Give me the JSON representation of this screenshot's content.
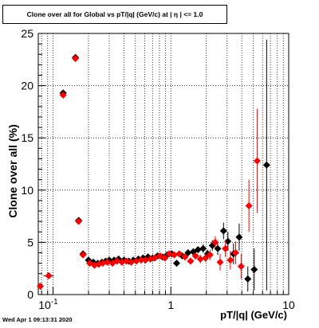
{
  "title": "Clone  over all for Global vs pT/|q| (GeV/c) at |  η | <= 1.0",
  "timestamp": "Wed Apr  1 09:13:31 2020",
  "colors": {
    "black_series": "#000000",
    "red_series": "#ff0000",
    "grid": "#000000"
  },
  "chart_data": {
    "type": "scatter",
    "title": "Clone  over all for Global vs pT/|q| (GeV/c) at |  η | <= 1.0",
    "xlabel": "pT/|q| (GeV/c)",
    "ylabel": "Clone  over all (%)",
    "xscale": "log",
    "xlim": [
      0.075,
      10
    ],
    "ylim": [
      0,
      25
    ],
    "x_tick_labels": [
      "10^-1",
      "1",
      "10"
    ],
    "y_tick_labels": [
      "0",
      "5",
      "10",
      "15",
      "20",
      "25"
    ],
    "grid": true,
    "series": [
      {
        "color": "#000000",
        "points": [
          {
            "x": 0.092,
            "y": 1.8,
            "xerr": 0.009,
            "yerr": 0.2
          },
          {
            "x": 0.122,
            "y": 19.3,
            "xerr": 0.008,
            "yerr": 0.3
          },
          {
            "x": 0.155,
            "y": 22.7,
            "xerr": 0.006,
            "yerr": 0.3
          },
          {
            "x": 0.165,
            "y": 7.1,
            "yerr": 0.2
          },
          {
            "x": 0.18,
            "y": 3.9,
            "yerr": 0.2
          },
          {
            "x": 0.2,
            "y": 3.3,
            "yerr": 0.2
          },
          {
            "x": 0.22,
            "y": 3.1,
            "yerr": 0.15
          },
          {
            "x": 0.24,
            "y": 3.0,
            "yerr": 0.15
          },
          {
            "x": 0.26,
            "y": 3.1,
            "yerr": 0.15
          },
          {
            "x": 0.28,
            "y": 3.2,
            "yerr": 0.15
          },
          {
            "x": 0.3,
            "y": 3.3,
            "yerr": 0.15
          },
          {
            "x": 0.33,
            "y": 3.3,
            "yerr": 0.15
          },
          {
            "x": 0.36,
            "y": 3.4,
            "yerr": 0.15
          },
          {
            "x": 0.4,
            "y": 3.3,
            "yerr": 0.15
          },
          {
            "x": 0.44,
            "y": 3.2,
            "yerr": 0.15
          },
          {
            "x": 0.48,
            "y": 3.3,
            "yerr": 0.15
          },
          {
            "x": 0.53,
            "y": 3.4,
            "yerr": 0.15
          },
          {
            "x": 0.58,
            "y": 3.5,
            "yerr": 0.15
          },
          {
            "x": 0.64,
            "y": 3.6,
            "yerr": 0.15
          },
          {
            "x": 0.7,
            "y": 3.5,
            "yerr": 0.15
          },
          {
            "x": 0.77,
            "y": 3.7,
            "yerr": 0.2
          },
          {
            "x": 0.85,
            "y": 3.6,
            "yerr": 0.2
          },
          {
            "x": 0.93,
            "y": 3.8,
            "yerr": 0.2
          },
          {
            "x": 1.02,
            "y": 3.9,
            "yerr": 0.2
          },
          {
            "x": 1.12,
            "y": 3.0,
            "yerr": 0.3
          },
          {
            "x": 1.25,
            "y": 3.7,
            "yerr": 0.3
          },
          {
            "x": 1.4,
            "y": 4.0,
            "yerr": 0.3
          },
          {
            "x": 1.55,
            "y": 4.1,
            "yerr": 0.3
          },
          {
            "x": 1.7,
            "y": 4.3,
            "yerr": 0.3
          },
          {
            "x": 1.88,
            "y": 4.4,
            "yerr": 0.4
          },
          {
            "x": 2.05,
            "y": 3.9,
            "yerr": 0.4
          },
          {
            "x": 2.25,
            "y": 4.7,
            "yerr": 0.5
          },
          {
            "x": 2.5,
            "y": 4.4,
            "yerr": 0.6
          },
          {
            "x": 2.8,
            "y": 6.1,
            "yerr": 0.8
          },
          {
            "x": 3.05,
            "y": 5.1,
            "yerr": 0.9
          },
          {
            "x": 3.4,
            "y": 3.9,
            "yerr": 1.0
          },
          {
            "x": 3.8,
            "y": 5.5,
            "yerr": 1.3
          },
          {
            "x": 4.5,
            "y": 1.5,
            "yerr": 1.2
          },
          {
            "x": 5.1,
            "y": 2.4,
            "yerr": 2.0
          },
          {
            "x": 6.5,
            "y": 12.4,
            "yerr": 12.0
          }
        ]
      },
      {
        "color": "#ff0000",
        "points": [
          {
            "x": 0.078,
            "y": 0.8,
            "yerr": 0.2
          },
          {
            "x": 0.092,
            "y": 1.8,
            "xerr": 0.009,
            "yerr": 0.2
          },
          {
            "x": 0.122,
            "y": 19.1,
            "xerr": 0.008,
            "yerr": 0.3
          },
          {
            "x": 0.155,
            "y": 22.6,
            "xerr": 0.006,
            "yerr": 0.3
          },
          {
            "x": 0.165,
            "y": 7.0,
            "yerr": 0.2
          },
          {
            "x": 0.18,
            "y": 3.8,
            "yerr": 0.2
          },
          {
            "x": 0.205,
            "y": 3.0,
            "yerr": 0.15
          },
          {
            "x": 0.225,
            "y": 2.8,
            "yerr": 0.15
          },
          {
            "x": 0.245,
            "y": 2.9,
            "yerr": 0.15
          },
          {
            "x": 0.265,
            "y": 3.0,
            "yerr": 0.15
          },
          {
            "x": 0.29,
            "y": 3.1,
            "yerr": 0.15
          },
          {
            "x": 0.32,
            "y": 3.0,
            "yerr": 0.15
          },
          {
            "x": 0.35,
            "y": 3.2,
            "yerr": 0.15
          },
          {
            "x": 0.385,
            "y": 3.1,
            "yerr": 0.15
          },
          {
            "x": 0.42,
            "y": 3.2,
            "yerr": 0.15
          },
          {
            "x": 0.46,
            "y": 3.1,
            "yerr": 0.15
          },
          {
            "x": 0.51,
            "y": 3.2,
            "yerr": 0.15
          },
          {
            "x": 0.56,
            "y": 3.3,
            "yerr": 0.15
          },
          {
            "x": 0.61,
            "y": 3.3,
            "yerr": 0.15
          },
          {
            "x": 0.67,
            "y": 3.4,
            "yerr": 0.15
          },
          {
            "x": 0.73,
            "y": 3.5,
            "yerr": 0.2
          },
          {
            "x": 0.81,
            "y": 3.7,
            "yerr": 0.2
          },
          {
            "x": 0.89,
            "y": 3.5,
            "yerr": 0.2
          },
          {
            "x": 0.97,
            "y": 3.9,
            "yerr": 0.2
          },
          {
            "x": 1.07,
            "y": 3.8,
            "yerr": 0.2
          },
          {
            "x": 1.18,
            "y": 3.9,
            "yerr": 0.3
          },
          {
            "x": 1.32,
            "y": 3.6,
            "yerr": 0.3
          },
          {
            "x": 1.47,
            "y": 3.2,
            "yerr": 0.3
          },
          {
            "x": 1.62,
            "y": 3.7,
            "yerr": 0.3
          },
          {
            "x": 1.78,
            "y": 3.4,
            "yerr": 0.4
          },
          {
            "x": 1.97,
            "y": 3.5,
            "yerr": 0.4
          },
          {
            "x": 2.15,
            "y": 3.8,
            "yerr": 0.5
          },
          {
            "x": 2.38,
            "y": 5.0,
            "yerr": 0.6
          },
          {
            "x": 2.62,
            "y": 3.1,
            "yerr": 0.8
          },
          {
            "x": 2.9,
            "y": 4.4,
            "yerr": 0.8
          },
          {
            "x": 3.2,
            "y": 3.3,
            "yerr": 0.9
          },
          {
            "x": 3.55,
            "y": 4.0,
            "yerr": 1.1
          },
          {
            "x": 3.95,
            "y": 2.7,
            "yerr": 1.2
          },
          {
            "x": 4.6,
            "y": 8.5,
            "yerr": 2.5
          },
          {
            "x": 5.4,
            "y": 12.8,
            "yerr": 5.0
          }
        ]
      }
    ]
  }
}
